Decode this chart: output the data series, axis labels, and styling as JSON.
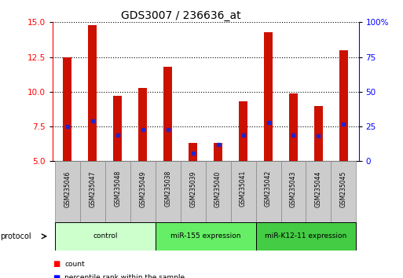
{
  "title": "GDS3007 / 236636_at",
  "samples": [
    "GSM235046",
    "GSM235047",
    "GSM235048",
    "GSM235049",
    "GSM235038",
    "GSM235039",
    "GSM235040",
    "GSM235041",
    "GSM235042",
    "GSM235043",
    "GSM235044",
    "GSM235045"
  ],
  "bar_heights": [
    12.5,
    14.8,
    9.7,
    10.3,
    11.8,
    6.3,
    6.3,
    9.3,
    14.3,
    9.9,
    9.0,
    13.0
  ],
  "blue_dot_y": [
    7.5,
    7.9,
    6.9,
    7.3,
    7.3,
    5.6,
    6.2,
    6.9,
    7.8,
    6.9,
    6.8,
    7.7
  ],
  "ymin": 5,
  "ymax": 15,
  "yticks_left": [
    5,
    7.5,
    10,
    12.5,
    15
  ],
  "yticks_right_vals": [
    0,
    25,
    50,
    75,
    100
  ],
  "yticks_right_labels": [
    "0",
    "25",
    "50",
    "75",
    "100%"
  ],
  "bar_color": "#cc1100",
  "dot_color": "#2222cc",
  "bar_width": 0.35,
  "groups": [
    {
      "label": "control",
      "indices": [
        0,
        1,
        2,
        3
      ],
      "color": "#ccffcc"
    },
    {
      "label": "miR-155 expression",
      "indices": [
        4,
        5,
        6,
        7
      ],
      "color": "#66ee66"
    },
    {
      "label": "miR-K12-11 expression",
      "indices": [
        8,
        9,
        10,
        11
      ],
      "color": "#44cc44"
    }
  ],
  "protocol_label": "protocol",
  "legend_count_label": "count",
  "legend_pct_label": "percentile rank within the sample",
  "title_fontsize": 10,
  "tick_fontsize": 7.5,
  "label_fontsize": 7.5
}
